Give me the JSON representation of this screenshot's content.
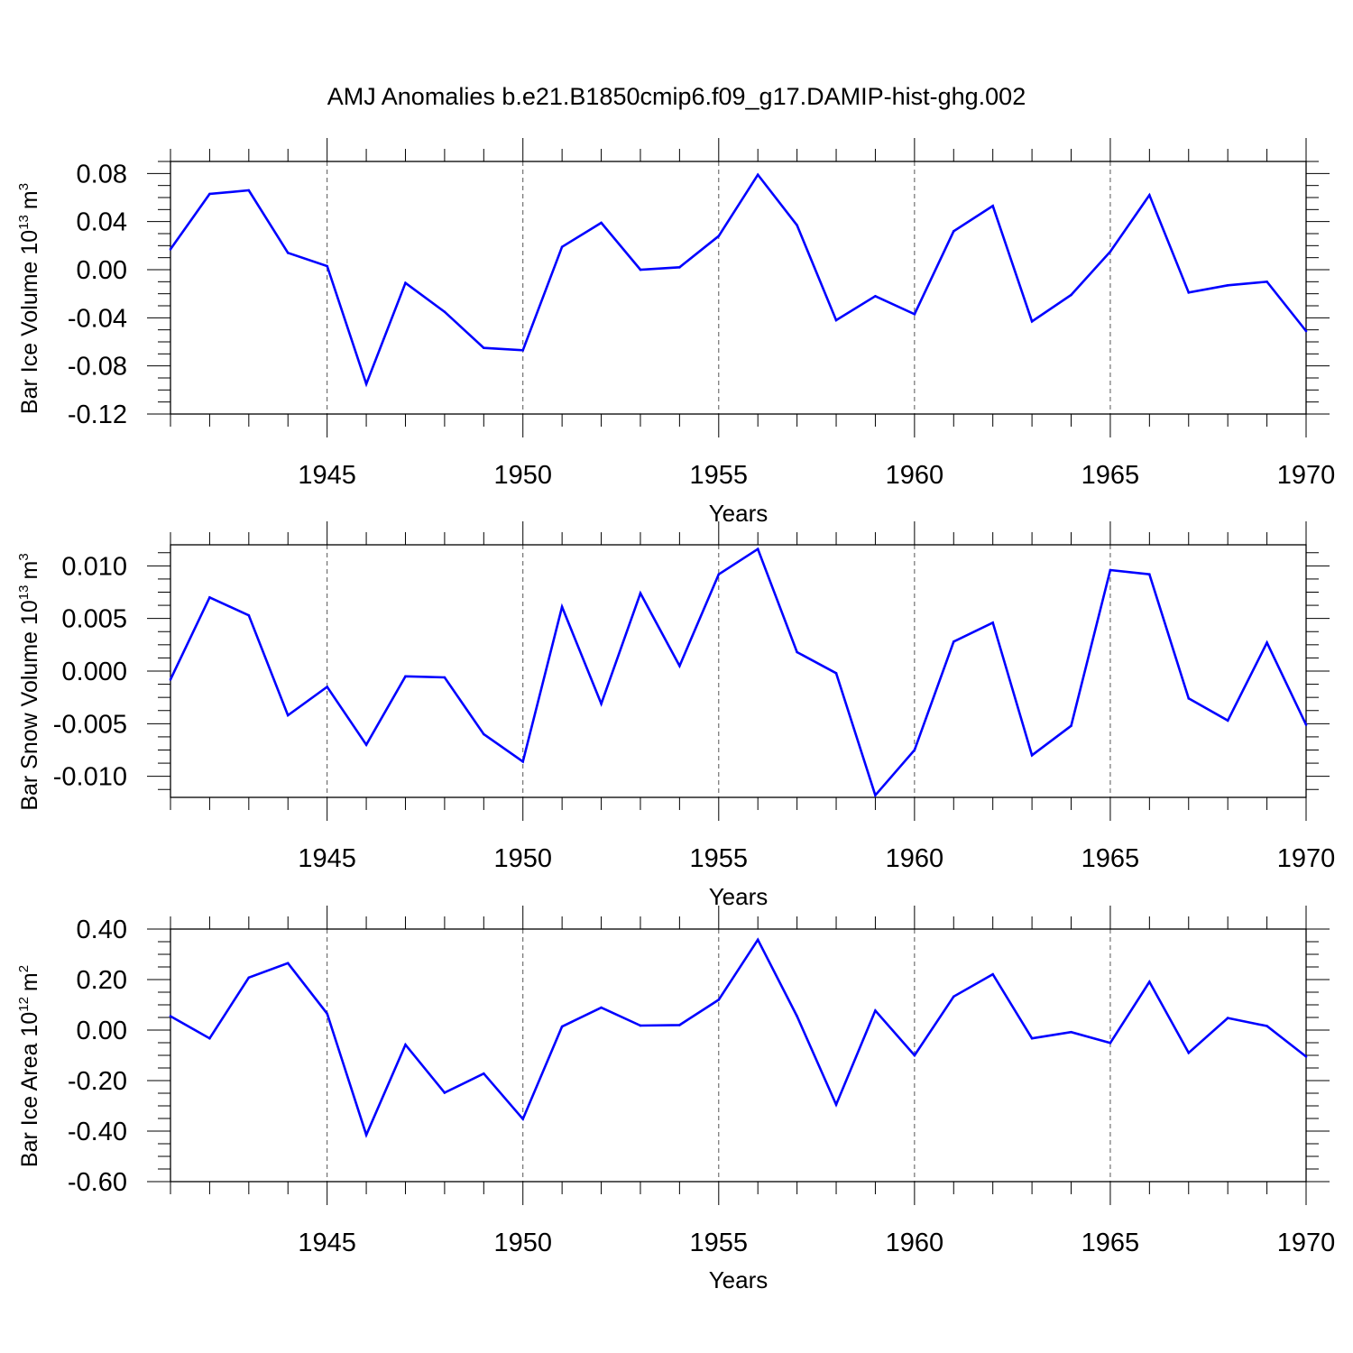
{
  "title": "AMJ Anomalies b.e21.B1850cmip6.f09_g17.DAMIP-hist-ghg.002",
  "colors": {
    "line": "#0000ff",
    "axis": "#000000",
    "grid": "#555555",
    "background": "#ffffff"
  },
  "chart_data": [
    {
      "type": "line",
      "ylabel_main": "Bar Ice Volume 10",
      "ylabel_exp": "13",
      "ylabel_unit": "m",
      "ylabel_unit_exp": "3",
      "xlabel": "Years",
      "xlim": [
        1941,
        1970
      ],
      "ylim": [
        -0.12,
        0.09
      ],
      "yticks": [
        -0.12,
        -0.08,
        -0.04,
        0.0,
        0.04,
        0.08
      ],
      "ytick_labels": [
        "-0.12",
        "-0.08",
        "-0.04",
        "0.00",
        "0.04",
        "0.08"
      ],
      "xticks": [
        1945,
        1950,
        1955,
        1960,
        1965,
        1970
      ],
      "xtick_labels": [
        "1945",
        "1950",
        "1955",
        "1960",
        "1965",
        "1970"
      ],
      "x": [
        1941,
        1942,
        1943,
        1944,
        1945,
        1946,
        1947,
        1948,
        1949,
        1950,
        1951,
        1952,
        1953,
        1954,
        1955,
        1956,
        1957,
        1958,
        1959,
        1960,
        1961,
        1962,
        1963,
        1964,
        1965,
        1966,
        1967,
        1968,
        1969,
        1970
      ],
      "values": [
        0.017,
        0.063,
        0.066,
        0.014,
        0.003,
        -0.095,
        -0.011,
        -0.035,
        -0.065,
        -0.067,
        0.019,
        0.039,
        0.0,
        0.002,
        0.028,
        0.079,
        0.037,
        -0.042,
        -0.022,
        -0.037,
        0.032,
        0.053,
        -0.043,
        -0.021,
        0.015,
        0.062,
        -0.019,
        -0.013,
        -0.01,
        -0.051
      ]
    },
    {
      "type": "line",
      "ylabel_main": "Bar Snow Volume 10",
      "ylabel_exp": "13",
      "ylabel_unit": "m",
      "ylabel_unit_exp": "3",
      "xlabel": "Years",
      "xlim": [
        1941,
        1970
      ],
      "ylim": [
        -0.012,
        0.012
      ],
      "yticks": [
        -0.01,
        -0.005,
        0.0,
        0.005,
        0.01
      ],
      "ytick_labels": [
        "-0.010",
        "-0.005",
        "0.000",
        "0.005",
        "0.010"
      ],
      "xticks": [
        1945,
        1950,
        1955,
        1960,
        1965,
        1970
      ],
      "xtick_labels": [
        "1945",
        "1950",
        "1955",
        "1960",
        "1965",
        "1970"
      ],
      "x": [
        1941,
        1942,
        1943,
        1944,
        1945,
        1946,
        1947,
        1948,
        1949,
        1950,
        1951,
        1952,
        1953,
        1954,
        1955,
        1956,
        1957,
        1958,
        1959,
        1960,
        1961,
        1962,
        1963,
        1964,
        1965,
        1966,
        1967,
        1968,
        1969,
        1970
      ],
      "values": [
        -0.0008,
        0.007,
        0.0053,
        -0.0042,
        -0.0015,
        -0.007,
        -0.0005,
        -0.0006,
        -0.006,
        -0.0086,
        0.0061,
        -0.0031,
        0.0074,
        0.0005,
        0.0092,
        0.0116,
        0.0018,
        -0.0002,
        -0.0118,
        -0.0075,
        0.0028,
        0.0046,
        -0.008,
        -0.0052,
        0.0096,
        0.0092,
        -0.0026,
        -0.0047,
        0.0027,
        -0.0051
      ]
    },
    {
      "type": "line",
      "ylabel_main": "Bar Ice Area 10",
      "ylabel_exp": "12",
      "ylabel_unit": "m",
      "ylabel_unit_exp": "2",
      "xlabel": "Years",
      "xlim": [
        1941,
        1970
      ],
      "ylim": [
        -0.6,
        0.4
      ],
      "yticks": [
        -0.6,
        -0.4,
        -0.2,
        0.0,
        0.2,
        0.4
      ],
      "ytick_labels": [
        "-0.60",
        "-0.40",
        "-0.20",
        "0.00",
        "0.20",
        "0.40"
      ],
      "xticks": [
        1945,
        1950,
        1955,
        1960,
        1965,
        1970
      ],
      "xtick_labels": [
        "1945",
        "1950",
        "1955",
        "1960",
        "1965",
        "1970"
      ],
      "x": [
        1941,
        1942,
        1943,
        1944,
        1945,
        1946,
        1947,
        1948,
        1949,
        1950,
        1951,
        1952,
        1953,
        1954,
        1955,
        1956,
        1957,
        1958,
        1959,
        1960,
        1961,
        1962,
        1963,
        1964,
        1965,
        1966,
        1967,
        1968,
        1969,
        1970
      ],
      "values": [
        0.055,
        -0.033,
        0.208,
        0.265,
        0.065,
        -0.415,
        -0.058,
        -0.248,
        -0.172,
        -0.352,
        0.014,
        0.089,
        0.018,
        0.02,
        0.12,
        0.358,
        0.055,
        -0.295,
        0.077,
        -0.1,
        0.133,
        0.221,
        -0.033,
        -0.008,
        -0.051,
        0.191,
        -0.09,
        0.048,
        0.016,
        -0.105
      ]
    }
  ]
}
